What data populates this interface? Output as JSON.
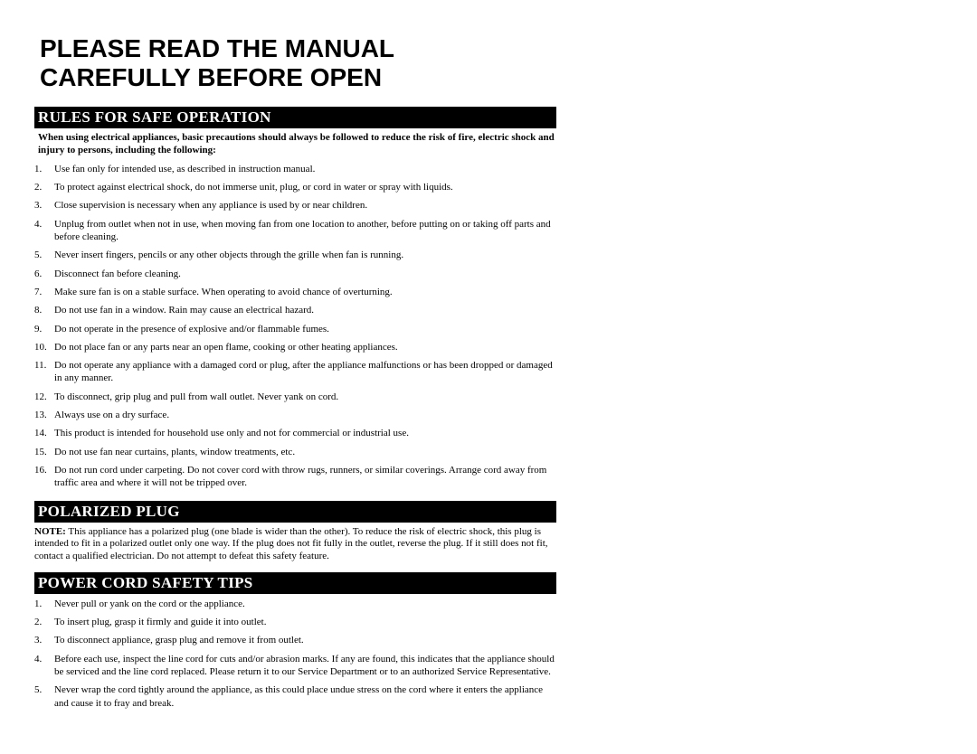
{
  "colors": {
    "page_bg": "#ffffff",
    "text": "#000000",
    "header_bg": "#000000",
    "header_text": "#ffffff"
  },
  "typography": {
    "title_font": "Arial",
    "title_size_pt": 21,
    "title_weight": "bold",
    "header_font": "Times New Roman",
    "header_size_pt": 13,
    "header_weight": "bold",
    "body_font": "Times New Roman",
    "body_size_pt": 8.5
  },
  "title_line1": "PLEASE READ THE MANUAL",
  "title_line2": "CAREFULLY BEFORE OPEN",
  "sections": {
    "rules": {
      "header": "RULES FOR SAFE OPERATION",
      "intro": "When using electrical appliances, basic precautions should always be followed to reduce the risk of fire, electric shock and injury to persons, including the following:",
      "items": [
        "Use fan only for intended use, as described in instruction manual.",
        "To protect against electrical shock, do not immerse unit, plug, or cord in water or spray with liquids.",
        "Close supervision is necessary when any appliance is used by or near children.",
        "Unplug from outlet when not in use, when moving fan from one location to another, before putting on or taking off parts and before cleaning.",
        "Never insert fingers, pencils or any other objects through the grille when fan is running.",
        "Disconnect fan before cleaning.",
        "Make sure fan is on a stable surface. When operating to avoid chance of overturning.",
        "Do not use fan in a window. Rain may cause an electrical hazard.",
        "Do not operate in the presence of explosive and/or flammable fumes.",
        "Do not place fan or any parts near an open flame, cooking or other heating appliances.",
        "Do not operate any appliance with a damaged cord or plug, after the appliance malfunctions or has been dropped or damaged in any manner.",
        "To disconnect, grip plug and pull from wall outlet. Never yank on cord.",
        "Always use on a dry surface.",
        "This product is intended for household use only and not for commercial or industrial use.",
        "Do not use fan near curtains, plants, window treatments, etc.",
        "Do not run cord under carpeting. Do not cover cord with throw rugs, runners, or similar coverings. Arrange cord away from traffic area and where it will not be tripped over."
      ]
    },
    "plug": {
      "header": "POLARIZED PLUG",
      "note_label": "NOTE:",
      "note_body": " This appliance has a polarized plug (one blade is wider than the other). To reduce the risk of electric shock, this plug is intended to fit in a polarized outlet only one way. If the plug does not fit fully in the outlet, reverse the plug. If it still does not fit, contact a qualified electrician. Do not attempt to defeat this safety feature."
    },
    "cord": {
      "header": "POWER CORD SAFETY TIPS",
      "items": [
        "Never pull or yank on the cord or the appliance.",
        "To insert plug, grasp it firmly and guide it into outlet.",
        "To disconnect appliance, grasp plug and remove it from outlet.",
        "Before each use, inspect the line cord for cuts and/or abrasion marks. If any are found, this indicates that the appliance should be serviced and the line cord replaced. Please return it to our Service Department or to an authorized Service Representative.",
        "Never wrap the cord tightly around the appliance, as this could place undue stress on the cord where it enters the appliance and cause it to fray and break."
      ]
    }
  }
}
